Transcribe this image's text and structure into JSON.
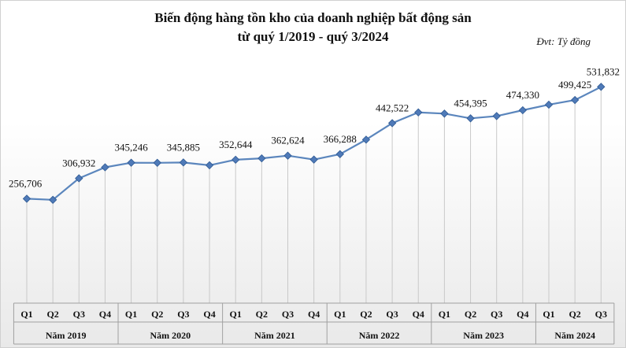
{
  "title_line1": "Biến động hàng tồn kho của doanh nghiệp bất động sản",
  "title_line2": "từ quý 1/2019 - quý 3/2024",
  "unit": "Đvt: Tỷ đồng",
  "colors": {
    "line": "#5b86bd",
    "marker": "#4f7ab8",
    "marker_border": "#2f5a93"
  },
  "chart_data": {
    "type": "line",
    "title": "Biến động hàng tồn kho của doanh nghiệp bất động sản từ quý 1/2019 - quý 3/2024",
    "unit": "Đvt: Tỷ đồng",
    "x": [
      "Q1",
      "Q2",
      "Q3",
      "Q4",
      "Q1",
      "Q2",
      "Q3",
      "Q4",
      "Q1",
      "Q2",
      "Q3",
      "Q4",
      "Q1",
      "Q2",
      "Q3",
      "Q4",
      "Q1",
      "Q2",
      "Q3",
      "Q4",
      "Q1",
      "Q2",
      "Q3"
    ],
    "groups": [
      {
        "label": "Năm 2019",
        "count": 4
      },
      {
        "label": "Năm 2020",
        "count": 4
      },
      {
        "label": "Năm 2021",
        "count": 4
      },
      {
        "label": "Năm 2022",
        "count": 4
      },
      {
        "label": "Năm 2023",
        "count": 4
      },
      {
        "label": "Năm 2024",
        "count": 3
      }
    ],
    "values": [
      256706,
      254000,
      306932,
      334000,
      345246,
      345000,
      345885,
      339000,
      352644,
      356000,
      362624,
      353000,
      366288,
      402000,
      442522,
      469000,
      466000,
      454395,
      460000,
      474330,
      488000,
      499425,
      531832
    ],
    "labels": [
      "256,706",
      "",
      "306,932",
      "",
      "345,246",
      "",
      "345,885",
      "",
      "352,644",
      "",
      "362,624",
      "",
      "366,288",
      "",
      "442,522",
      "",
      "",
      "454,395",
      "",
      "474,330",
      "",
      "499,425",
      "531,832"
    ],
    "ylim": [
      0,
      560000
    ],
    "grid": false,
    "legend": "none"
  }
}
